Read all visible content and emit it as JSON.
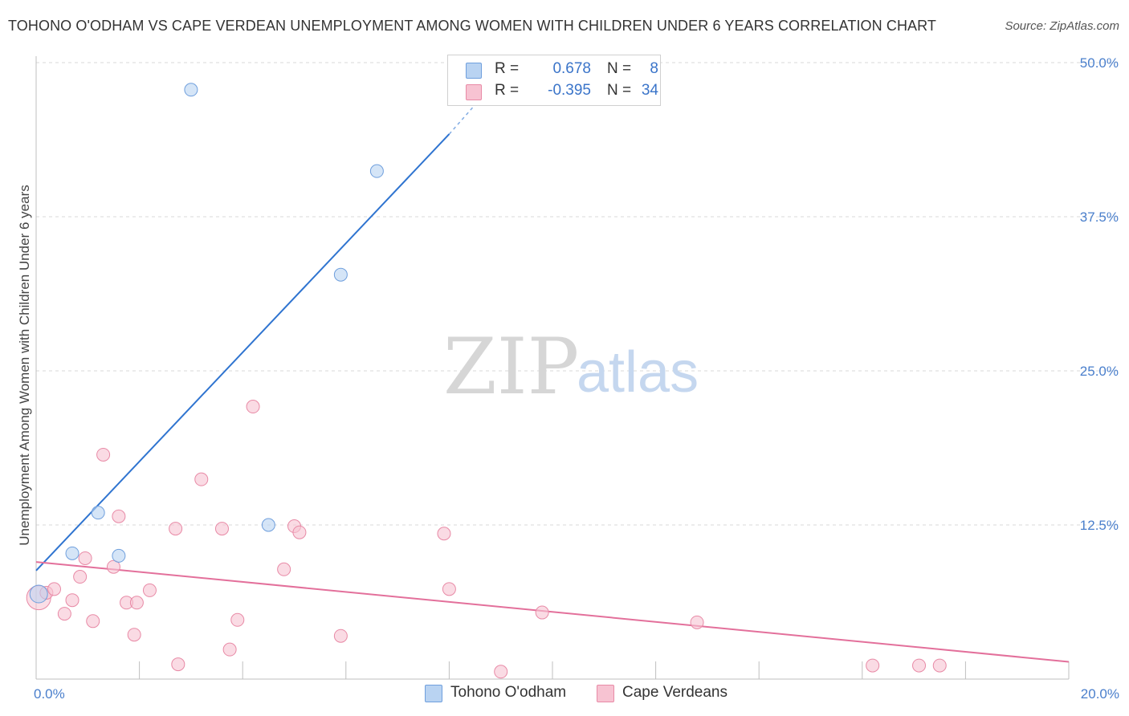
{
  "title": "TOHONO O'ODHAM VS CAPE VERDEAN UNEMPLOYMENT AMONG WOMEN WITH CHILDREN UNDER 6 YEARS CORRELATION CHART",
  "source": "Source: ZipAtlas.com",
  "watermark": {
    "zip": "ZIP",
    "atlas": "atlas"
  },
  "legend": {
    "rows": [
      {
        "r_label": "R =",
        "r_value": "0.678",
        "n_label": "N =",
        "n_value": "8"
      },
      {
        "r_label": "R =",
        "r_value": "-0.395",
        "n_label": "N =",
        "n_value": "34"
      }
    ]
  },
  "bottom_legend": [
    "Tohono O'odham",
    "Cape Verdeans"
  ],
  "colors": {
    "blue_fill": "#b9d3f2",
    "blue_stroke": "#6f9fdd",
    "blue_line": "#2f74d0",
    "pink_fill": "#f7c3d2",
    "pink_stroke": "#e88aa6",
    "pink_line": "#e3709b",
    "grid": "#d9d9d9",
    "tick_text": "#4a7fcc"
  },
  "chart_data": {
    "type": "scatter",
    "title": "TOHONO O'ODHAM VS CAPE VERDEAN UNEMPLOYMENT AMONG WOMEN WITH CHILDREN UNDER 6 YEARS CORRELATION CHART",
    "xlabel": "",
    "ylabel": "Unemployment Among Women with Children Under 6 years",
    "xlim": [
      0,
      20
    ],
    "ylim": [
      0,
      50
    ],
    "x_tick_labels": [
      "0.0%",
      "20.0%"
    ],
    "y_ticks": [
      12.5,
      25.0,
      37.5,
      50.0
    ],
    "y_tick_labels": [
      "12.5%",
      "25.0%",
      "37.5%",
      "50.0%"
    ],
    "grid": true,
    "series": [
      {
        "name": "Tohono O'odham",
        "points": [
          {
            "x": 0.05,
            "y": 6.9
          },
          {
            "x": 0.7,
            "y": 10.2
          },
          {
            "x": 1.2,
            "y": 13.5
          },
          {
            "x": 1.6,
            "y": 10.0
          },
          {
            "x": 3.0,
            "y": 47.8
          },
          {
            "x": 4.5,
            "y": 12.5
          },
          {
            "x": 5.9,
            "y": 32.8
          },
          {
            "x": 6.6,
            "y": 41.2
          }
        ],
        "trend": {
          "x0": 0.0,
          "y0": 8.8,
          "x1": 8.0,
          "y1": 44.2,
          "x_dash_end": 8.8,
          "y_dash_end": 48.0
        }
      },
      {
        "name": "Cape Verdeans",
        "points": [
          {
            "x": 0.05,
            "y": 6.6
          },
          {
            "x": 0.2,
            "y": 7.0
          },
          {
            "x": 0.35,
            "y": 7.3
          },
          {
            "x": 0.55,
            "y": 5.3
          },
          {
            "x": 0.7,
            "y": 6.4
          },
          {
            "x": 0.85,
            "y": 8.3
          },
          {
            "x": 0.95,
            "y": 9.8
          },
          {
            "x": 1.1,
            "y": 4.7
          },
          {
            "x": 1.3,
            "y": 18.2
          },
          {
            "x": 1.5,
            "y": 9.1
          },
          {
            "x": 1.6,
            "y": 13.2
          },
          {
            "x": 1.75,
            "y": 6.2
          },
          {
            "x": 1.9,
            "y": 3.6
          },
          {
            "x": 1.95,
            "y": 6.2
          },
          {
            "x": 2.2,
            "y": 7.2
          },
          {
            "x": 2.7,
            "y": 12.2
          },
          {
            "x": 2.75,
            "y": 1.2
          },
          {
            "x": 3.2,
            "y": 16.2
          },
          {
            "x": 3.6,
            "y": 12.2
          },
          {
            "x": 3.75,
            "y": 2.4
          },
          {
            "x": 3.9,
            "y": 4.8
          },
          {
            "x": 4.2,
            "y": 22.1
          },
          {
            "x": 4.8,
            "y": 8.9
          },
          {
            "x": 5.0,
            "y": 12.4
          },
          {
            "x": 5.1,
            "y": 11.9
          },
          {
            "x": 5.9,
            "y": 3.5
          },
          {
            "x": 7.9,
            "y": 11.8
          },
          {
            "x": 8.0,
            "y": 7.3
          },
          {
            "x": 9.0,
            "y": 0.6
          },
          {
            "x": 9.8,
            "y": 5.4
          },
          {
            "x": 12.8,
            "y": 4.6
          },
          {
            "x": 16.2,
            "y": 1.1
          },
          {
            "x": 17.1,
            "y": 1.1
          },
          {
            "x": 17.5,
            "y": 1.1
          }
        ],
        "trend": {
          "x0": 0.0,
          "y0": 9.5,
          "x1": 20.0,
          "y1": 1.4
        }
      }
    ]
  }
}
